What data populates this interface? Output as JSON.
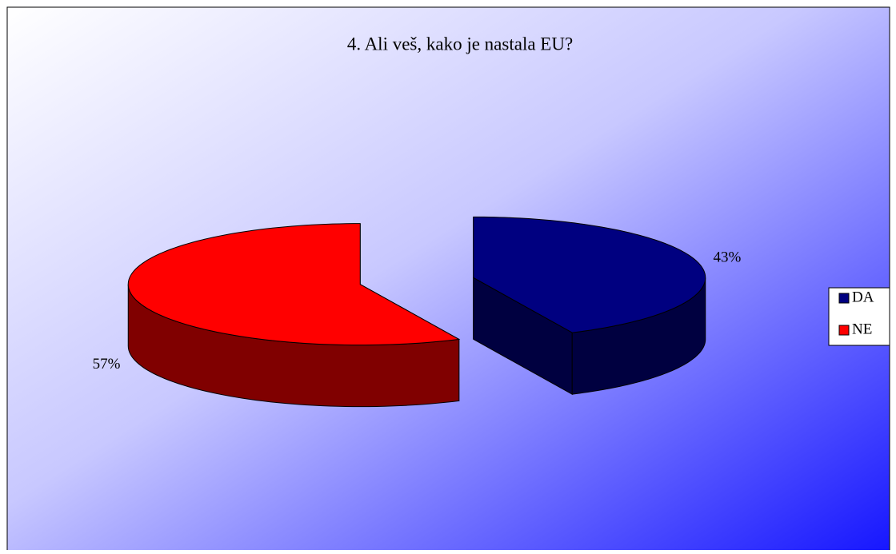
{
  "chart_data": {
    "type": "pie",
    "title": "4. Ali veš, kako je nastala EU?",
    "categories": [
      "DA",
      "NE"
    ],
    "values": [
      43,
      57
    ],
    "value_labels": [
      "43%",
      "57%"
    ],
    "colors": [
      "#000080",
      "#ff0000"
    ],
    "legend": "right",
    "exploded": true,
    "three_d": true
  }
}
